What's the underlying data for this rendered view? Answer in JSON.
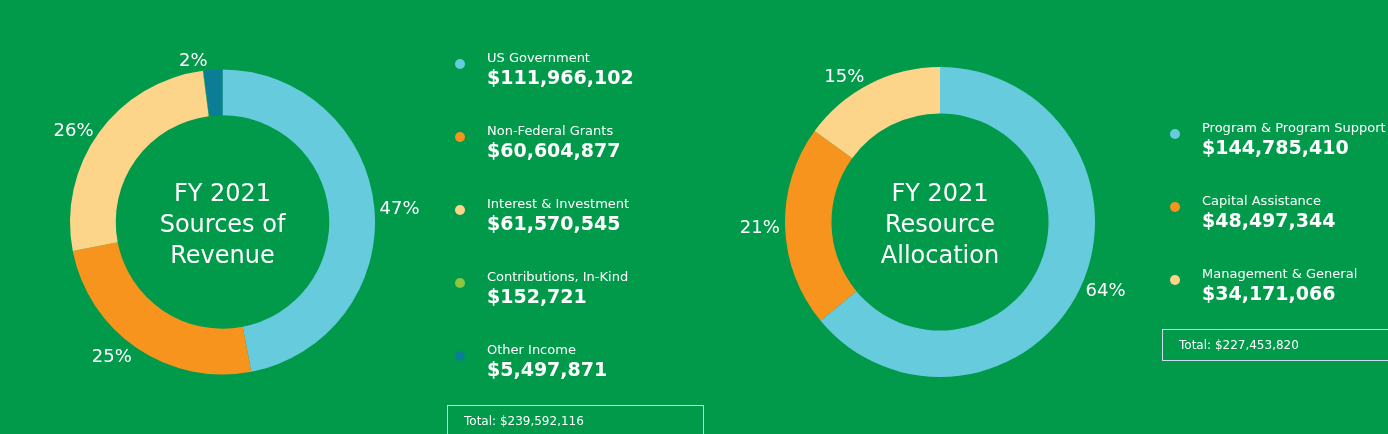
{
  "chart_data": [
    {
      "type": "donut",
      "title": "FY 2021\nSources of\nRevenue",
      "categories": [
        "US Government",
        "Non-Federal Grants",
        "Interest & Investment",
        "Contributions, In-Kind",
        "Other Income"
      ],
      "values": [
        47,
        25,
        26,
        0.06,
        2
      ],
      "colors": [
        "#66cbdc",
        "#f7941d",
        "#fdd58a",
        "#8dc63f",
        "#0b7e96"
      ],
      "value_labels": [
        "47%",
        "25%",
        "26%",
        null,
        "2%"
      ],
      "annotations": [
        "$111,966,102",
        "$60,604,877",
        "$61,570,545",
        "$152,721",
        "$5,497,871",
        "Total: $239,592,116"
      ],
      "legend": "right"
    },
    {
      "type": "donut",
      "title": "FY 2021\nResource\nAllocation",
      "categories": [
        "Program & Program Support",
        "Capital Assistance",
        "Management & General"
      ],
      "values": [
        64,
        21,
        15
      ],
      "colors": [
        "#66cbdc",
        "#f7941d",
        "#fdd58a"
      ],
      "value_labels": [
        "64%",
        "21%",
        "15%"
      ],
      "annotations": [
        "$144,785,410",
        "$48,497,344",
        "$34,171,066",
        "Total: $227,453,820"
      ],
      "legend": "right"
    }
  ]
}
